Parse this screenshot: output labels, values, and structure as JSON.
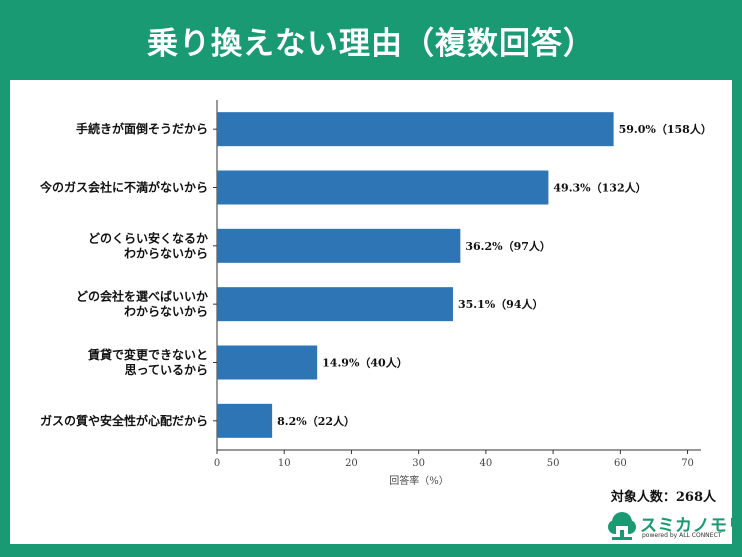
{
  "title": "乗り換えない理由（複数回答）",
  "chart_data": {
    "type": "bar",
    "orientation": "horizontal",
    "categories": [
      [
        "手続きが面倒そうだから"
      ],
      [
        "今のガス会社に不満がないから"
      ],
      [
        "どのくらい安くなるか",
        "わからないから"
      ],
      [
        "どの会社を選べばいいか",
        "わからないから"
      ],
      [
        "賃貸で変更できないと",
        "思っているから"
      ],
      [
        "ガスの質や安全性が心配だから"
      ]
    ],
    "values": [
      59.0,
      49.3,
      36.2,
      35.1,
      14.9,
      8.2
    ],
    "value_labels": [
      "59.0%（158人）",
      "49.3%（132人）",
      "36.2%（97人）",
      "35.1%（94人）",
      "14.9%（40人）",
      "8.2%（22人）"
    ],
    "xlabel": "回答率（%）",
    "xlim": [
      0,
      72
    ],
    "xticks": [
      0,
      10,
      20,
      30,
      40,
      50,
      60,
      70
    ],
    "bar_color": "#2e75b6",
    "grid": false
  },
  "footer_note": "対象人数：268人",
  "brand": {
    "name": "スミカノモリ",
    "tagline": "powered by ALL CONNECT",
    "color": "#1a9a73",
    "icon": "house-tree-icon"
  }
}
